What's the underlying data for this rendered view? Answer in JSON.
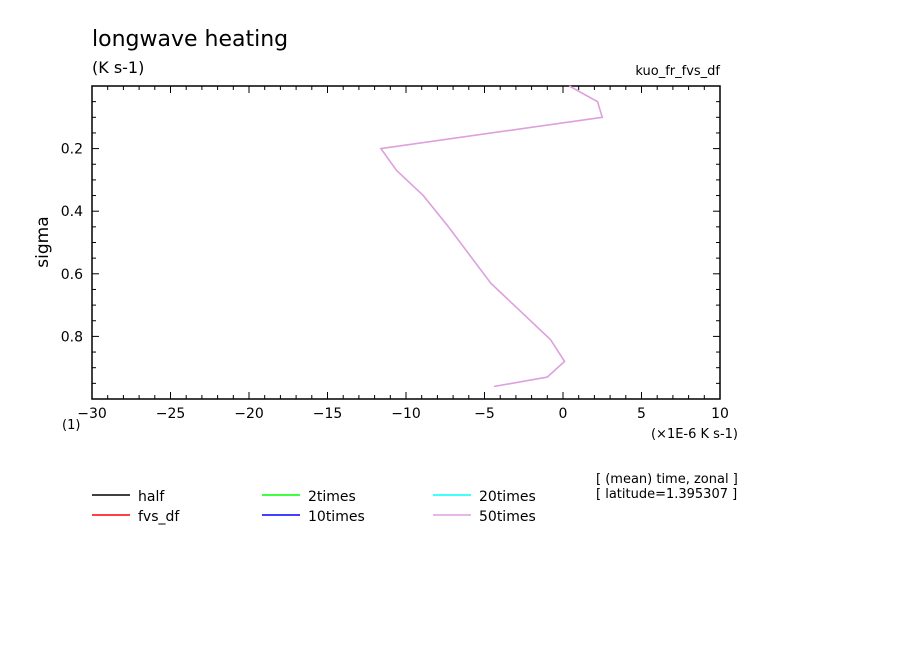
{
  "chart_data": {
    "type": "line",
    "title": "longwave heating",
    "units": "(K s-1)",
    "run_name": "kuo_fr_fvs_df",
    "ylabel": "sigma",
    "y_units": "(1)",
    "xlabel": "(×1E-6 K s-1)",
    "xlim": [
      -30,
      10
    ],
    "ylim": [
      1.0,
      0.0
    ],
    "x_ticks": [
      "−30",
      "−25",
      "−20",
      "−15",
      "−10",
      "−5",
      "0",
      "5",
      "10"
    ],
    "y_ticks": [
      "0.2",
      "0.4",
      "0.6",
      "0.8"
    ],
    "notes": [
      "[ (mean) time, zonal ]",
      "[ latitude=1.395307 ]"
    ],
    "legend_position": "bottom",
    "series": [
      {
        "name": "half",
        "color": "#000000",
        "x": [],
        "y": []
      },
      {
        "name": "fvs_df",
        "color": "#ff0000",
        "x": [],
        "y": []
      },
      {
        "name": "2times",
        "color": "#00ff00",
        "x": [],
        "y": []
      },
      {
        "name": "10times",
        "color": "#0000ff",
        "x": [],
        "y": []
      },
      {
        "name": "20times",
        "color": "#00ffff",
        "x": [],
        "y": []
      },
      {
        "name": "50times",
        "color": "#dda0dd",
        "x": [
          0.4,
          2.2,
          2.5,
          -11.6,
          -10.6,
          -8.9,
          -7.3,
          -4.6,
          -0.8,
          0.1,
          -1.0,
          -4.4
        ],
        "y": [
          0.0,
          0.05,
          0.1,
          0.2,
          0.27,
          0.35,
          0.45,
          0.63,
          0.81,
          0.88,
          0.93,
          0.96
        ]
      }
    ]
  }
}
